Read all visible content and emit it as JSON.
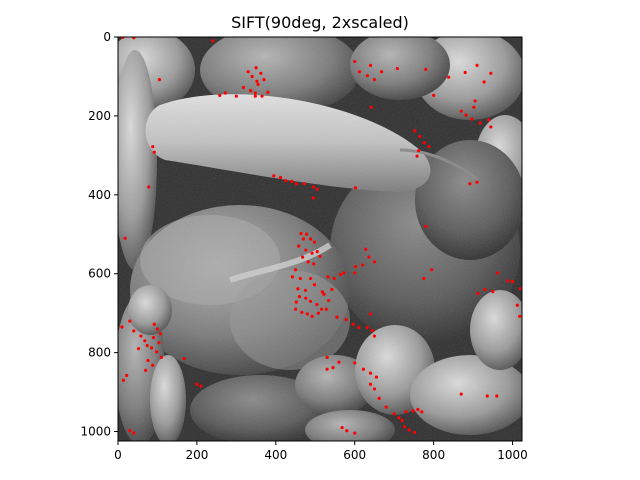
{
  "chart_data": {
    "type": "scatter",
    "title": "SIFT(90deg, 2xscaled)",
    "xlabel": "",
    "ylabel": "",
    "xlim": [
      0,
      1024
    ],
    "ylim": [
      1024,
      0
    ],
    "xticks": [
      0,
      200,
      400,
      600,
      800,
      1000
    ],
    "yticks": [
      0,
      200,
      400,
      600,
      800,
      1000
    ],
    "background": "grayscale photograph of bell and chili peppers",
    "grid": false,
    "legend": "none",
    "marker_color": "#ff0000",
    "series": [
      {
        "points": [
          [
            12,
            1
          ],
          [
            40,
            2
          ],
          [
            240,
            10
          ],
          [
            330,
            88
          ],
          [
            350,
            78
          ],
          [
            340,
            100
          ],
          [
            352,
            112
          ],
          [
            362,
            92
          ],
          [
            370,
            108
          ],
          [
            318,
            128
          ],
          [
            336,
            136
          ],
          [
            348,
            142
          ],
          [
            272,
            142
          ],
          [
            258,
            148
          ],
          [
            300,
            150
          ],
          [
            348,
            150
          ],
          [
            380,
            140
          ],
          [
            365,
            150
          ],
          [
            105,
            108
          ],
          [
            355,
            120
          ],
          [
            600,
            62
          ],
          [
            612,
            88
          ],
          [
            632,
            98
          ],
          [
            640,
            72
          ],
          [
            650,
            108
          ],
          [
            642,
            178
          ],
          [
            668,
            88
          ],
          [
            708,
            80
          ],
          [
            780,
            82
          ],
          [
            800,
            148
          ],
          [
            838,
            102
          ],
          [
            880,
            90
          ],
          [
            910,
            72
          ],
          [
            945,
            92
          ],
          [
            928,
            114
          ],
          [
            870,
            188
          ],
          [
            882,
            198
          ],
          [
            897,
            208
          ],
          [
            918,
            218
          ],
          [
            945,
            228
          ],
          [
            902,
            178
          ],
          [
            905,
            162
          ],
          [
            940,
            210
          ],
          [
            752,
            238
          ],
          [
            765,
            252
          ],
          [
            776,
            268
          ],
          [
            762,
            288
          ],
          [
            788,
            278
          ],
          [
            758,
            302
          ],
          [
            892,
            372
          ],
          [
            910,
            368
          ],
          [
            88,
            278
          ],
          [
            92,
            292
          ],
          [
            78,
            380
          ],
          [
            395,
            352
          ],
          [
            412,
            356
          ],
          [
            425,
            364
          ],
          [
            440,
            366
          ],
          [
            452,
            372
          ],
          [
            472,
            372
          ],
          [
            495,
            380
          ],
          [
            505,
            386
          ],
          [
            602,
            382
          ],
          [
            628,
            538
          ],
          [
            636,
            558
          ],
          [
            650,
            570
          ],
          [
            620,
            578
          ],
          [
            602,
            582
          ],
          [
            600,
            598
          ],
          [
            780,
            480
          ],
          [
            775,
            612
          ],
          [
            640,
            702
          ],
          [
            795,
            590
          ],
          [
            962,
            598
          ],
          [
            988,
            618
          ],
          [
            930,
            640
          ],
          [
            950,
            645
          ],
          [
            912,
            650
          ],
          [
            1000,
            620
          ],
          [
            1020,
            638
          ],
          [
            1012,
            680
          ],
          [
            1018,
            708
          ],
          [
            495,
            408
          ],
          [
            464,
            498
          ],
          [
            478,
            500
          ],
          [
            470,
            512
          ],
          [
            488,
            512
          ],
          [
            498,
            520
          ],
          [
            458,
            530
          ],
          [
            476,
            540
          ],
          [
            492,
            548
          ],
          [
            505,
            544
          ],
          [
            512,
            556
          ],
          [
            468,
            558
          ],
          [
            482,
            570
          ],
          [
            496,
            575
          ],
          [
            450,
            590
          ],
          [
            442,
            608
          ],
          [
            462,
            612
          ],
          [
            488,
            612
          ],
          [
            498,
            628
          ],
          [
            456,
            638
          ],
          [
            475,
            642
          ],
          [
            460,
            658
          ],
          [
            476,
            662
          ],
          [
            488,
            670
          ],
          [
            452,
            672
          ],
          [
            504,
            678
          ],
          [
            516,
            690
          ],
          [
            508,
            700
          ],
          [
            528,
            690
          ],
          [
            534,
            668
          ],
          [
            522,
            652
          ],
          [
            518,
            646
          ],
          [
            542,
            640
          ],
          [
            548,
            612
          ],
          [
            532,
            608
          ],
          [
            564,
            602
          ],
          [
            572,
            598
          ],
          [
            450,
            690
          ],
          [
            466,
            698
          ],
          [
            480,
            702
          ],
          [
            492,
            708
          ],
          [
            555,
            710
          ],
          [
            578,
            716
          ],
          [
            596,
            728
          ],
          [
            610,
            736
          ],
          [
            644,
            744
          ],
          [
            632,
            736
          ],
          [
            650,
            758
          ],
          [
            18,
            510
          ],
          [
            10,
            735
          ],
          [
            30,
            720
          ],
          [
            40,
            745
          ],
          [
            58,
            758
          ],
          [
            68,
            770
          ],
          [
            74,
            782
          ],
          [
            52,
            790
          ],
          [
            92,
            728
          ],
          [
            100,
            740
          ],
          [
            108,
            752
          ],
          [
            90,
            762
          ],
          [
            104,
            775
          ],
          [
            85,
            788
          ],
          [
            98,
            798
          ],
          [
            110,
            812
          ],
          [
            76,
            820
          ],
          [
            88,
            832
          ],
          [
            70,
            845
          ],
          [
            168,
            815
          ],
          [
            22,
            858
          ],
          [
            14,
            870
          ],
          [
            200,
            880
          ],
          [
            210,
            885
          ],
          [
            530,
            842
          ],
          [
            545,
            838
          ],
          [
            560,
            824
          ],
          [
            530,
            812
          ],
          [
            600,
            826
          ],
          [
            622,
            842
          ],
          [
            640,
            852
          ],
          [
            655,
            862
          ],
          [
            640,
            880
          ],
          [
            650,
            892
          ],
          [
            662,
            916
          ],
          [
            680,
            938
          ],
          [
            700,
            955
          ],
          [
            712,
            965
          ],
          [
            720,
            972
          ],
          [
            726,
            988
          ],
          [
            738,
            996
          ],
          [
            752,
            1002
          ],
          [
            730,
            950
          ],
          [
            748,
            948
          ],
          [
            760,
            944
          ],
          [
            770,
            950
          ],
          [
            870,
            905
          ],
          [
            936,
            910
          ],
          [
            960,
            910
          ],
          [
            568,
            990
          ],
          [
            580,
            998
          ],
          [
            30,
            998
          ],
          [
            40,
            1004
          ],
          [
            600,
            1004
          ]
        ]
      }
    ]
  }
}
